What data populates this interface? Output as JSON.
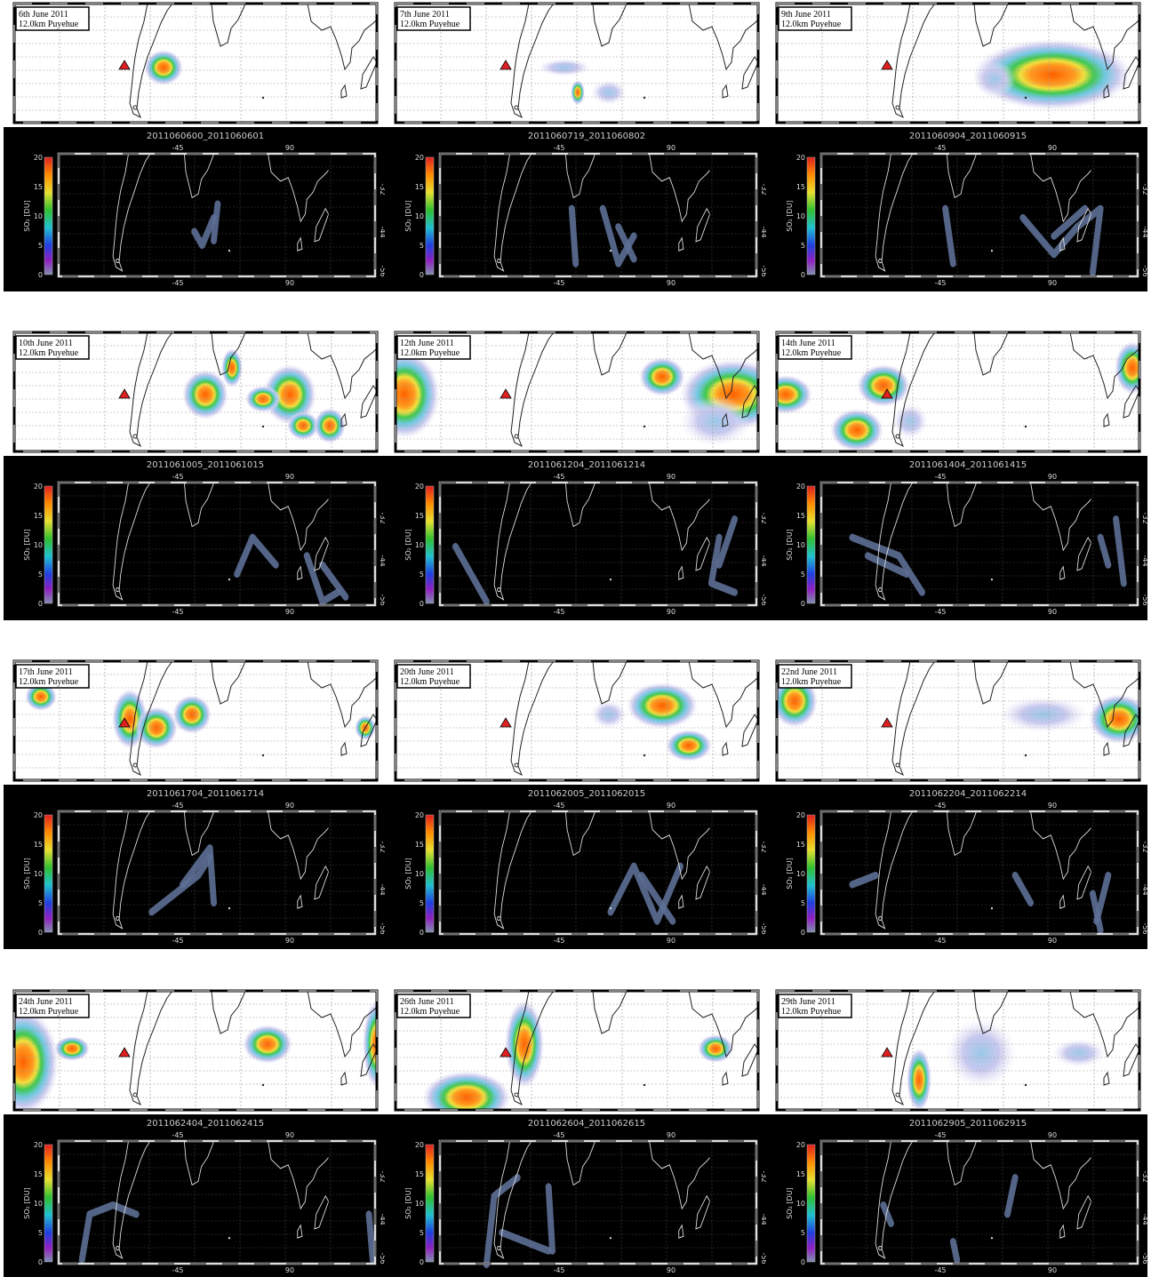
{
  "figure": {
    "panels": [
      {
        "date": "6th June 2011",
        "model": "12.0km Puyehue",
        "sat_title": "2011060600_2011060601"
      },
      {
        "date": "7th June 2011",
        "model": "12.0km Puyehue",
        "sat_title": "2011060719_2011060802"
      },
      {
        "date": "9th June 2011",
        "model": "12.0km Puyehue",
        "sat_title": "2011060904_2011060915"
      },
      {
        "date": "10th June 2011",
        "model": "12.0km Puyehue",
        "sat_title": "2011061005_2011061015"
      },
      {
        "date": "12th June 2011",
        "model": "12.0km Puyehue",
        "sat_title": "2011061204_2011061214"
      },
      {
        "date": "14th June 2011",
        "model": "12.0km Puyehue",
        "sat_title": "2011061404_2011061415"
      },
      {
        "date": "17th June 2011",
        "model": "12.0km Puyehue",
        "sat_title": "2011061704_2011061714"
      },
      {
        "date": "20th June 2011",
        "model": "12.0km Puyehue",
        "sat_title": "2011062005_2011062015"
      },
      {
        "date": "22nd June 2011",
        "model": "12.0km Puyehue",
        "sat_title": "2011062204_2011062214"
      },
      {
        "date": "24th June 2011",
        "model": "12.0km Puyehue",
        "sat_title": "2011062404_2011062415"
      },
      {
        "date": "26th June 2011",
        "model": "12.0km Puyehue",
        "sat_title": "2011062604_2011062615"
      },
      {
        "date": "29th June 2011",
        "model": "12.0km Puyehue",
        "sat_title": "2011062905_2011062915"
      }
    ],
    "colorbar": {
      "label": "SO₂ [DU]",
      "ticks": [
        "0",
        "5",
        "10",
        "15",
        "20"
      ]
    },
    "x_ticks": [
      "-45",
      "90"
    ],
    "y_ticks": [
      "-32",
      "-44",
      "-56"
    ]
  }
}
